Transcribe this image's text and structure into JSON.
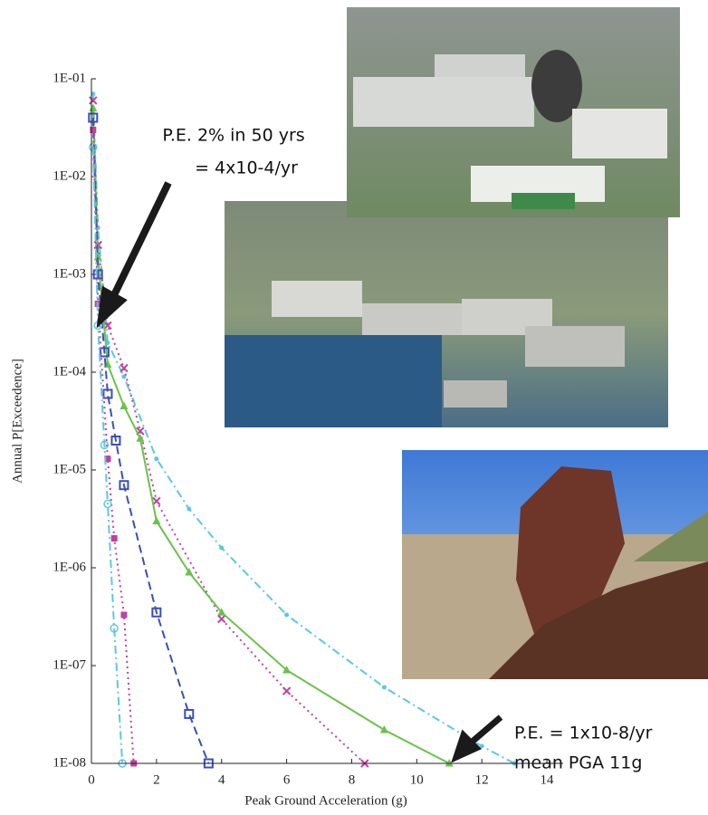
{
  "chart_data": {
    "type": "line",
    "xlabel": "Peak Ground Acceleration (g)",
    "ylabel": "Annual P[Exceedence]",
    "log_y": true,
    "xlim": [
      0,
      14.5
    ],
    "ylim": [
      1e-08,
      0.1
    ],
    "xticks": [
      0,
      2,
      4,
      6,
      8,
      10,
      12,
      14
    ],
    "yticks": [
      {
        "value": 0.1,
        "label": "1E-01"
      },
      {
        "value": 0.01,
        "label": "1E-02"
      },
      {
        "value": 0.001,
        "label": "1E-03"
      },
      {
        "value": 0.0001,
        "label": "1E-04"
      },
      {
        "value": 1e-05,
        "label": "1E-05"
      },
      {
        "value": 1e-06,
        "label": "1E-06"
      },
      {
        "value": 1e-07,
        "label": "1E-07"
      },
      {
        "value": 1e-08,
        "label": "1E-08"
      }
    ],
    "series": [
      {
        "color": "#5bc8e0",
        "dash": "dashdot",
        "marker": "dot",
        "x": [
          0.05,
          0.2,
          0.5,
          1,
          2,
          3,
          4,
          6,
          9,
          12,
          13
        ],
        "values": [
          0.07,
          0.003,
          0.0002,
          9e-05,
          1.3e-05,
          4e-06,
          1.6e-06,
          3.3e-07,
          6e-08,
          1.5e-08,
          1e-08
        ]
      },
      {
        "color": "#c040a0",
        "dash": "dotted",
        "marker": "x",
        "x": [
          0.05,
          0.2,
          0.5,
          1,
          1.5,
          2,
          4,
          6,
          8.4
        ],
        "values": [
          0.06,
          0.002,
          0.0003,
          0.00011,
          2.5e-05,
          4.8e-06,
          3e-07,
          5.5e-08,
          1e-08
        ]
      },
      {
        "color": "#6ac24a",
        "dash": "solid",
        "marker": "star",
        "x": [
          0.05,
          0.2,
          0.5,
          1,
          1.5,
          2,
          3,
          4,
          6,
          9,
          11
        ],
        "values": [
          0.05,
          0.0015,
          0.00012,
          4.5e-05,
          2.1e-05,
          3e-06,
          9e-07,
          3.5e-07,
          9e-08,
          2.2e-08,
          1e-08
        ]
      },
      {
        "color": "#3a4fb8",
        "dash": "dashed",
        "marker": "square-open",
        "x": [
          0.05,
          0.2,
          0.4,
          0.5,
          0.75,
          1,
          2,
          3,
          3.6
        ],
        "values": [
          0.04,
          0.001,
          0.00016,
          6e-05,
          2e-05,
          7e-06,
          3.5e-07,
          3.2e-08,
          1e-08
        ]
      },
      {
        "color": "#c040a0",
        "dash": "dotted",
        "marker": "square",
        "x": [
          0.05,
          0.2,
          0.5,
          0.7,
          1,
          1.3
        ],
        "values": [
          0.03,
          0.0005,
          1.3e-05,
          2e-06,
          3.3e-07,
          1e-08
        ]
      },
      {
        "color": "#5bc8e0",
        "dash": "dashdot",
        "marker": "circle-open",
        "x": [
          0.05,
          0.2,
          0.4,
          0.5,
          0.7,
          0.95
        ],
        "values": [
          0.02,
          0.0003,
          1.8e-05,
          4.5e-06,
          2.4e-07,
          1e-08
        ]
      }
    ],
    "annotations": [
      "P.E. 2% in 50 yrs",
      "= 4x10-4/yr",
      "P.E. = 1x10-8/yr",
      "mean PGA 11g"
    ]
  }
}
